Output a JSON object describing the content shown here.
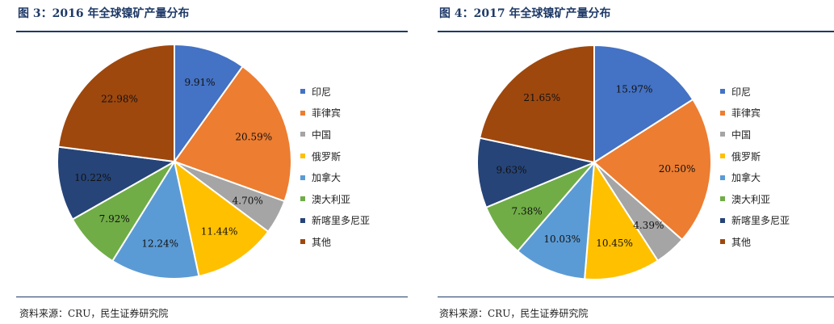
{
  "source_text": "资料来源：CRU，民生证券研究院",
  "colors": [
    "#4472c4",
    "#ed7d31",
    "#a5a5a5",
    "#ffc000",
    "#5b9bd5",
    "#70ad47",
    "#264478",
    "#9e480e"
  ],
  "chart_data": [
    {
      "type": "pie",
      "title": "图 3：2016 年全球镍矿产量分布",
      "labels": [
        "印尼",
        "菲律宾",
        "中国",
        "俄罗斯",
        "加拿大",
        "澳大利亚",
        "新喀里多尼亚",
        "其他"
      ],
      "values": [
        9.91,
        20.59,
        4.7,
        11.44,
        12.24,
        7.92,
        10.22,
        22.98
      ],
      "value_labels": [
        "9.91%",
        "20.59%",
        "4.70%",
        "11.44%",
        "12.24%",
        "7.92%",
        "10.22%",
        "22.98%"
      ],
      "legend_position": "right"
    },
    {
      "type": "pie",
      "title": "图 4：2017 年全球镍矿产量分布",
      "labels": [
        "印尼",
        "菲律宾",
        "中国",
        "俄罗斯",
        "加拿大",
        "澳大利亚",
        "新喀里多尼亚",
        "其他"
      ],
      "values": [
        15.97,
        20.5,
        4.39,
        10.45,
        10.03,
        7.38,
        9.63,
        21.65
      ],
      "value_labels": [
        "15.97%",
        "20.50%",
        "4.39%",
        "10.45%",
        "10.03%",
        "7.38%",
        "9.63%",
        "21.65%"
      ],
      "legend_position": "right"
    }
  ]
}
